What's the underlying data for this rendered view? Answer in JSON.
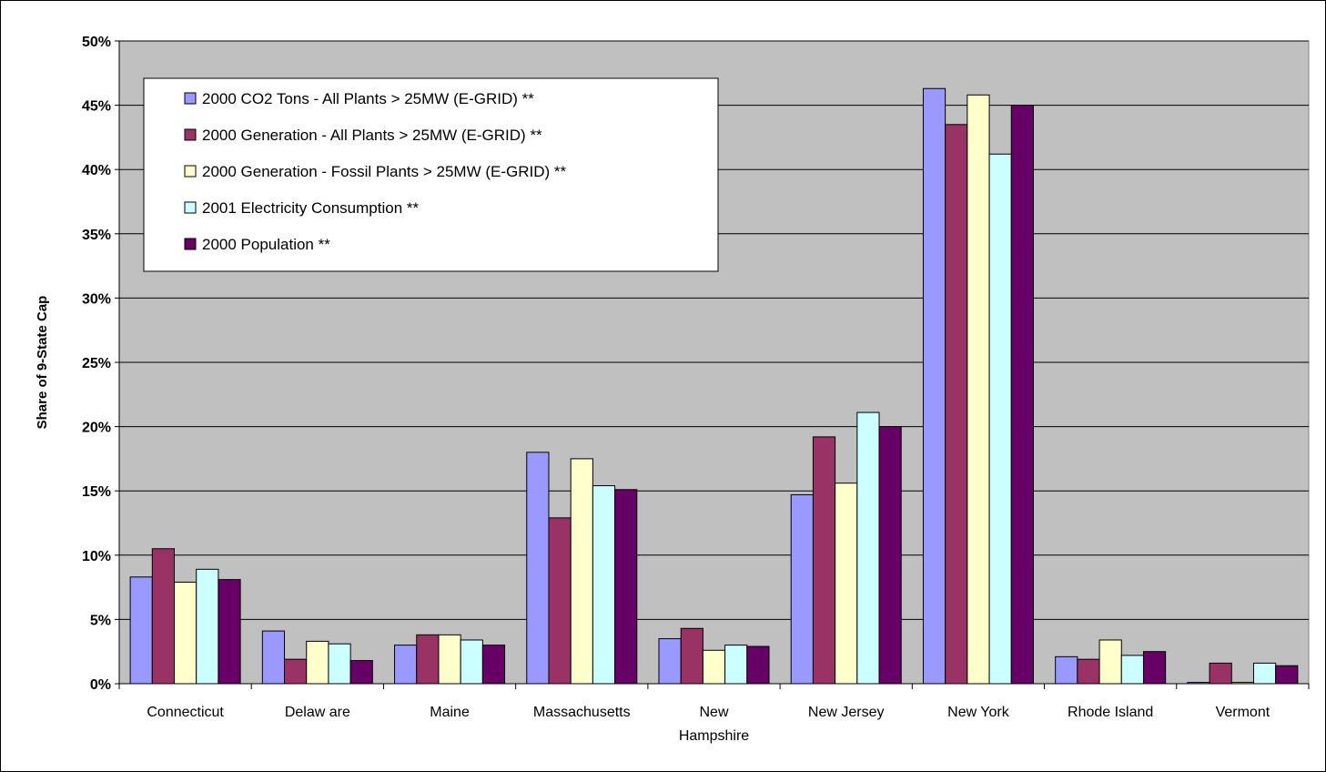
{
  "chart_data": {
    "type": "bar",
    "title": "",
    "xlabel": "",
    "ylabel": "Share of 9-State Cap",
    "ylim": [
      0,
      50
    ],
    "yticks": [
      "0%",
      "5%",
      "10%",
      "15%",
      "20%",
      "25%",
      "30%",
      "35%",
      "40%",
      "45%",
      "50%"
    ],
    "grid": true,
    "legend_position": "top-left",
    "categories": [
      [
        "Connecticut"
      ],
      [
        "Delaw are"
      ],
      [
        "Maine"
      ],
      [
        "Massachusetts"
      ],
      [
        "New",
        "Hampshire"
      ],
      [
        "New Jersey"
      ],
      [
        "New York"
      ],
      [
        "Rhode Island"
      ],
      [
        "Vermont"
      ]
    ],
    "series": [
      {
        "name": "2000 CO2 Tons - All Plants > 25MW (E-GRID) **",
        "color": "#9999ff",
        "values": [
          8.3,
          4.1,
          3.0,
          18.0,
          3.5,
          14.7,
          46.3,
          2.1,
          0.1
        ]
      },
      {
        "name": "2000 Generation - All Plants > 25MW (E-GRID) **",
        "color": "#993366",
        "values": [
          10.5,
          1.9,
          3.8,
          12.9,
          4.3,
          19.2,
          43.5,
          1.9,
          1.6
        ]
      },
      {
        "name": "2000 Generation - Fossil Plants > 25MW (E-GRID) **",
        "color": "#ffffcc",
        "values": [
          7.9,
          3.3,
          3.8,
          17.5,
          2.6,
          15.6,
          45.8,
          3.4,
          0.1
        ]
      },
      {
        "name": "2001 Electricity Consumption **",
        "color": "#ccffff",
        "values": [
          8.9,
          3.1,
          3.4,
          15.4,
          3.0,
          21.1,
          41.2,
          2.2,
          1.6
        ]
      },
      {
        "name": "2000 Population **",
        "color": "#660066",
        "values": [
          8.1,
          1.8,
          3.0,
          15.1,
          2.9,
          20.0,
          45.0,
          2.5,
          1.4
        ]
      }
    ]
  }
}
